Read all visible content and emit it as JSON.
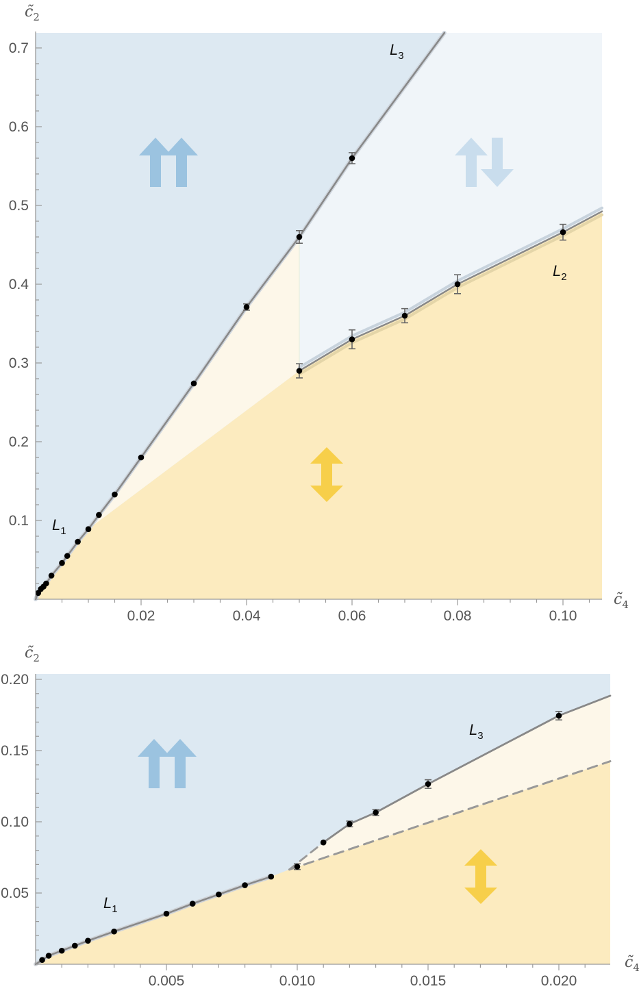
{
  "chart_data": [
    {
      "type": "scatter",
      "xlabel": "c̃4",
      "ylabel": "c̃2",
      "xlim": [
        0,
        0.108
      ],
      "ylim": [
        0,
        0.72
      ],
      "xticks": [
        "0.02",
        "0.04",
        "0.06",
        "0.08",
        "0.10"
      ],
      "yticks": [
        "0.1",
        "0.2",
        "0.3",
        "0.4",
        "0.5",
        "0.6",
        "0.7"
      ],
      "line_labels": [
        {
          "text": "L1",
          "main": "L",
          "sub": "1"
        },
        {
          "text": "L2",
          "main": "L",
          "sub": "2"
        },
        {
          "text": "L3",
          "main": "L",
          "sub": "3"
        }
      ],
      "regions": [
        {
          "symbol": "⇈",
          "color": "#9bc3e0"
        },
        {
          "symbol": "⇅",
          "color": "#c9dded"
        },
        {
          "symbol": "↕",
          "color": "#f7cf4a"
        }
      ],
      "colors": {
        "blue_region": "#dde9f2",
        "light_region": "#f0f5f9",
        "cream_region": "#fdf7e9",
        "yellow_region": "#fcebbf",
        "line": "#888888",
        "point": "#000000"
      },
      "series": [
        {
          "values_x": [
            0.0005,
            0.001,
            0.0015,
            0.002,
            0.003,
            0.005,
            0.006,
            0.008,
            0.01,
            0.012,
            0.015,
            0.02,
            0.03,
            0.04,
            0.05,
            0.06
          ],
          "values_y": [
            0.008,
            0.013,
            0.016,
            0.02,
            0.03,
            0.046,
            0.055,
            0.073,
            0.089,
            0.107,
            0.133,
            0.18,
            0.274,
            0.371,
            0.46,
            0.56
          ]
        },
        {
          "values_x": [
            0.05,
            0.06,
            0.07,
            0.08,
            0.1
          ],
          "values_y": [
            0.29,
            0.33,
            0.36,
            0.4,
            0.466
          ]
        }
      ]
    },
    {
      "type": "scatter",
      "xlabel": "c̃4",
      "ylabel": "c̃2",
      "xlim": [
        0,
        0.022
      ],
      "ylim": [
        0,
        0.2
      ],
      "xticks": [
        "0.005",
        "0.010",
        "0.015",
        "0.020"
      ],
      "yticks": [
        "0.05",
        "0.10",
        "0.15",
        "0.20"
      ],
      "line_labels": [
        {
          "text": "L1",
          "main": "L",
          "sub": "1"
        },
        {
          "text": "L3",
          "main": "L",
          "sub": "3"
        }
      ],
      "regions": [
        {
          "symbol": "⇈",
          "color": "#9bc3e0"
        },
        {
          "symbol": "↕",
          "color": "#f7cf4a"
        }
      ],
      "series": [
        {
          "values_x": [
            0.00025,
            0.0005,
            0.001,
            0.0015,
            0.002,
            0.003,
            0.005,
            0.006,
            0.007,
            0.008,
            0.009,
            0.01,
            0.011,
            0.012,
            0.013,
            0.015,
            0.02
          ],
          "values_y": [
            0.003,
            0.006,
            0.0095,
            0.013,
            0.0165,
            0.023,
            0.0355,
            0.0425,
            0.049,
            0.0555,
            0.0615,
            0.0685,
            0.0855,
            0.0985,
            0.1065,
            0.1265,
            0.1745
          ]
        }
      ]
    }
  ]
}
